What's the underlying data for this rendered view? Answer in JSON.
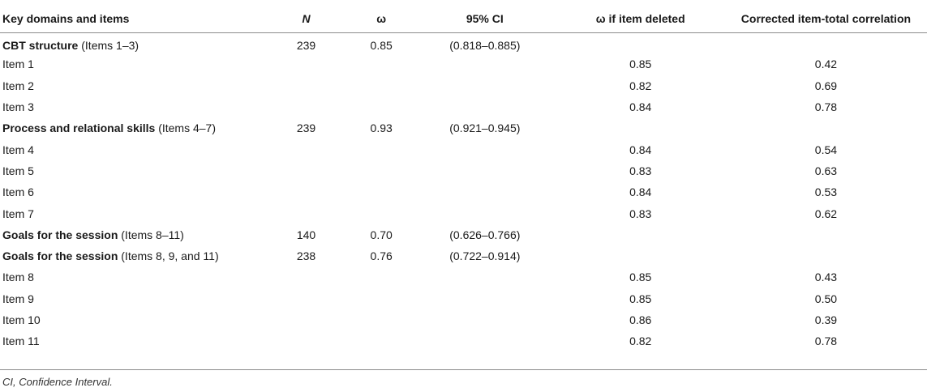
{
  "headers": [
    "Key domains and items",
    "N",
    "ω",
    "95% CI",
    "ω if item deleted",
    "Corrected item-total correlation"
  ],
  "rows": [
    {
      "domain": "CBT structure",
      "suffix": " (Items 1–3)",
      "n": "239",
      "omega": "0.85",
      "ci": "(0.818–0.885)",
      "deleted": "",
      "corr": ""
    },
    {
      "label": "Item 1",
      "deleted": "0.85",
      "corr": "0.42"
    },
    {
      "label": "Item 2",
      "deleted": "0.82",
      "corr": "0.69"
    },
    {
      "label": "Item 3",
      "deleted": "0.84",
      "corr": "0.78"
    },
    {
      "domain": "Process and relational skills",
      "suffix": " (Items 4–7)",
      "n": "239",
      "omega": "0.93",
      "ci": "(0.921–0.945)",
      "deleted": "",
      "corr": ""
    },
    {
      "label": "Item 4",
      "deleted": "0.84",
      "corr": "0.54"
    },
    {
      "label": "Item 5",
      "deleted": "0.83",
      "corr": "0.63"
    },
    {
      "label": "Item 6",
      "deleted": "0.84",
      "corr": "0.53"
    },
    {
      "label": "Item 7",
      "deleted": "0.83",
      "corr": "0.62"
    },
    {
      "domain": "Goals for the session",
      "suffix": " (Items 8–11)",
      "n": "140",
      "omega": "0.70",
      "ci": "(0.626–0.766)",
      "deleted": "",
      "corr": ""
    },
    {
      "domain": "Goals for the session",
      "suffix": " (Items 8, 9, and 11)",
      "n": "238",
      "omega": "0.76",
      "ci": "(0.722–0.914)",
      "deleted": "",
      "corr": ""
    },
    {
      "label": "Item 8",
      "deleted": "0.85",
      "corr": "0.43"
    },
    {
      "label": "Item 9",
      "deleted": "0.85",
      "corr": "0.50"
    },
    {
      "label": "Item 10",
      "deleted": "0.86",
      "corr": "0.39"
    },
    {
      "label": "Item 11",
      "deleted": "0.82",
      "corr": "0.78"
    }
  ],
  "footnote": "CI, Confidence Interval."
}
